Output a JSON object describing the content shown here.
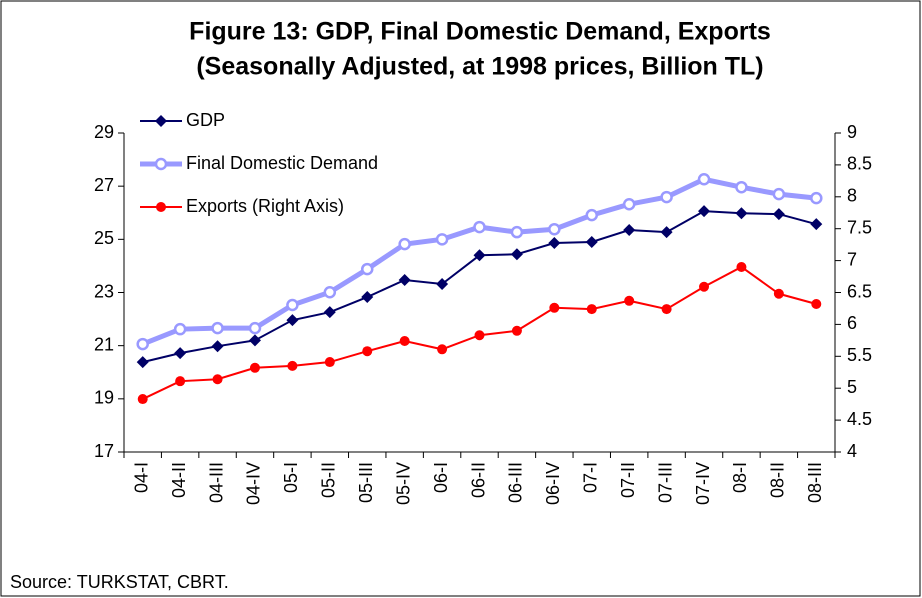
{
  "chart_data": {
    "type": "line",
    "title": [
      "Figure 13: GDP, Final Domestic Demand, Exports",
      "(Seasonally Adjusted, at 1998 prices, Billion TL)"
    ],
    "source": "Source: TURKSTAT, CBRT.",
    "categories": [
      "04-I",
      "04-II",
      "04-III",
      "04-IV",
      "05-I",
      "05-II",
      "05-III",
      "05-IV",
      "06-I",
      "06-II",
      "06-III",
      "06-IV",
      "07-I",
      "07-II",
      "07-III",
      "07-IV",
      "08-I",
      "08-II",
      "08-III"
    ],
    "series": [
      {
        "name": "GDP",
        "color": "#000066",
        "marker": "diamond",
        "values": [
          20.38,
          20.72,
          20.98,
          21.2,
          21.96,
          22.26,
          22.83,
          23.47,
          23.32,
          24.4,
          24.44,
          24.86,
          24.9,
          25.35,
          25.27,
          26.06,
          25.98,
          25.95,
          25.57
        ]
      },
      {
        "name": "Final Domestic Demand",
        "color": "#9999ff",
        "marker": "circle",
        "values": [
          21.06,
          21.62,
          21.66,
          21.66,
          22.53,
          23.01,
          23.88,
          24.82,
          25.0,
          25.46,
          25.27,
          25.38,
          25.91,
          26.32,
          26.59,
          27.26,
          26.96,
          26.7,
          26.55
        ]
      },
      {
        "name": "Exports (Right Axis)",
        "color": "#ff0000",
        "marker": "dot",
        "axis": "y2",
        "values": [
          4.83,
          5.11,
          5.14,
          5.32,
          5.35,
          5.41,
          5.58,
          5.74,
          5.61,
          5.83,
          5.9,
          6.26,
          6.24,
          6.37,
          6.24,
          6.59,
          6.9,
          6.48,
          6.32
        ]
      }
    ],
    "ylim": [
      17,
      29
    ],
    "yticks": [
      17,
      19,
      21,
      23,
      25,
      27,
      29
    ],
    "y2lim": [
      4,
      9
    ],
    "y2ticks": [
      4,
      4.5,
      5,
      5.5,
      6,
      6.5,
      7,
      7.5,
      8,
      8.5,
      9
    ],
    "legend": "upper left",
    "grid": false
  }
}
